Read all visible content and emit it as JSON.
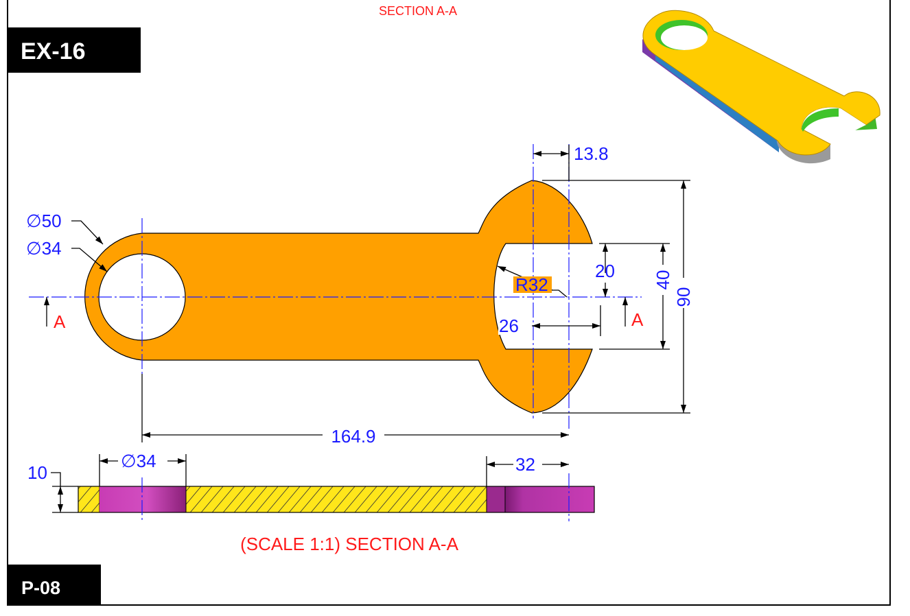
{
  "header": {
    "section_title_top": "SECTION A-A"
  },
  "labels": {
    "exercise_id": "EX-16",
    "page_id": "P-08"
  },
  "dimensions": {
    "outer_diameter": "∅50",
    "hole_diameter": "∅34",
    "jaw_offset": "13.8",
    "jaw_width": "20",
    "jaw_radius": "R32",
    "jaw_depth": "26",
    "head_inner_height": "40",
    "head_height": "90",
    "center_distance": "164.9",
    "section_hole_diameter": "∅34",
    "section_jaw_width": "32",
    "thickness": "10"
  },
  "section_marks": {
    "left": "A",
    "right": "A"
  },
  "section_view": {
    "caption": "(SCALE 1:1) SECTION A-A"
  },
  "colors": {
    "part_fill": "#ffa000",
    "dimension_blue": "#1a1aff",
    "section_red": "#ff1a1a",
    "hatch_yellow": "#ffe61a",
    "hole_magenta": "#c83cb4",
    "label_box": "#000000"
  }
}
